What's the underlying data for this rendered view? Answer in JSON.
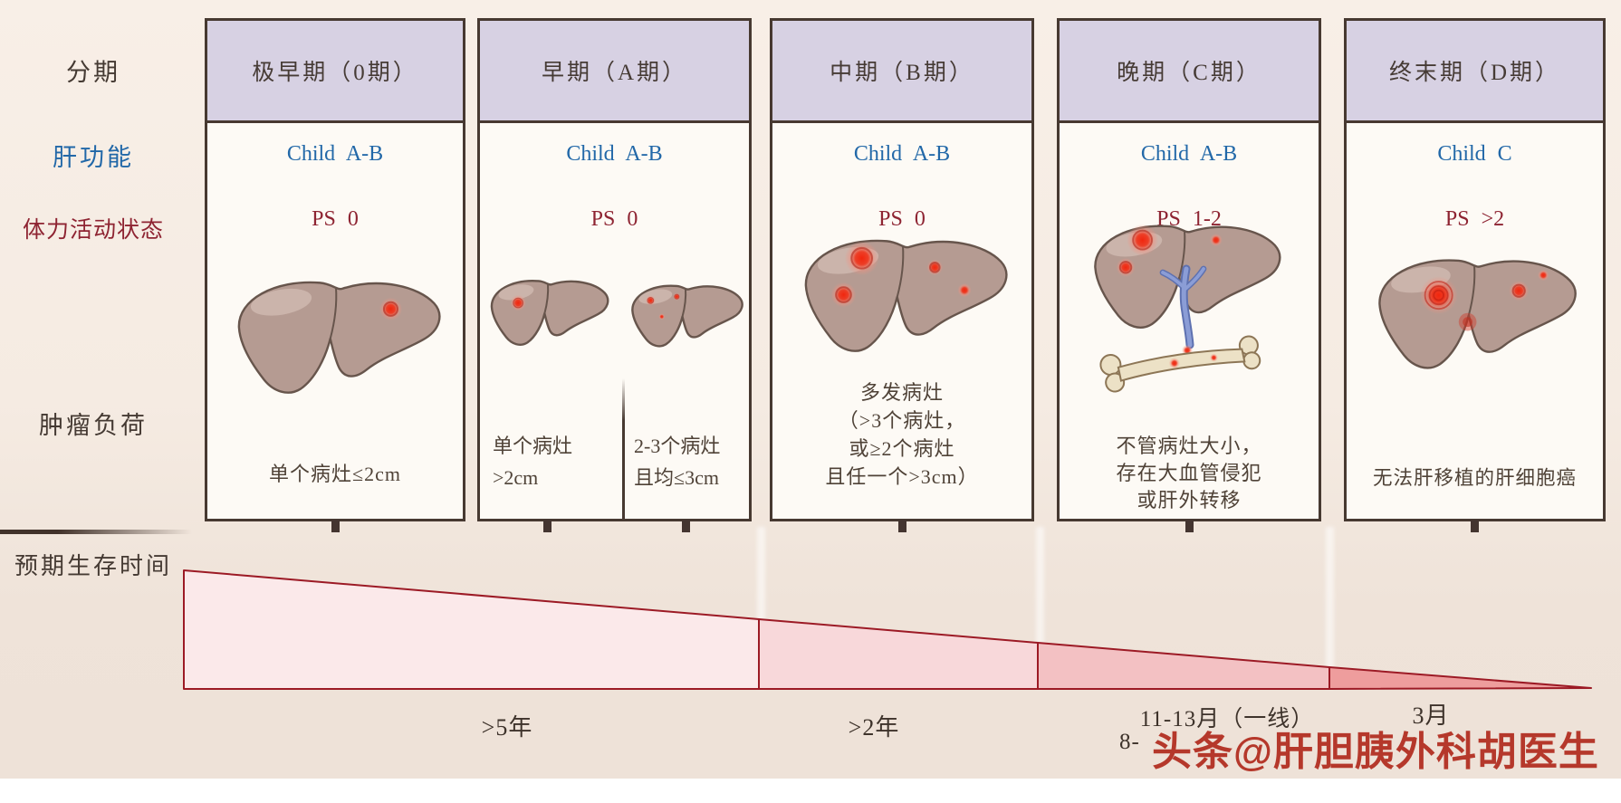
{
  "row_labels": {
    "staging": "分期",
    "liver_function": "肝功能",
    "performance_status": "体力活动状态",
    "tumor_burden": "肿瘤负荷",
    "expected_survival": "预期生存时间"
  },
  "stages": [
    {
      "header": "极早期（0期）",
      "child": "Child A-B",
      "ps": "PS 0",
      "illustration": "liver-with-single-small-tumor",
      "tumor_desc": [
        "单个病灶≤2cm"
      ]
    },
    {
      "header": "早期（A期）",
      "child": "Child A-B",
      "ps": "PS 0",
      "illustration": "two-livers-single-tumor-and-2-3-tumors",
      "sub_descs": [
        [
          "单个病灶",
          ">2cm"
        ],
        [
          "2-3个病灶",
          "且均≤3cm"
        ]
      ]
    },
    {
      "header": "中期（B期）",
      "child": "Child A-B",
      "ps": "PS 0",
      "illustration": "liver-with-multiple-tumors",
      "tumor_desc": [
        "多发病灶",
        "（>3个病灶，",
        "或≥2个病灶",
        "且任一个>3cm）"
      ]
    },
    {
      "header": "晚期（C期）",
      "child": "Child A-B",
      "ps": "PS 1-2",
      "illustration": "liver-with-vascular-invasion-and-bone-metastasis",
      "tumor_desc": [
        "不管病灶大小，",
        "存在大血管侵犯",
        "或肝外转移"
      ]
    },
    {
      "header": "终末期（D期）",
      "child": "Child C",
      "ps": "PS >2",
      "illustration": "liver-with-large-diffuse-tumors",
      "tumor_desc": [
        "无法肝移植的肝细胞癌"
      ]
    }
  ],
  "survival_labels": {
    "stage_0_a": ">5年",
    "stage_b": ">2年",
    "stage_c_line1": "11-13月（一线）",
    "stage_c_line2": "8-",
    "stage_d": "3月"
  },
  "watermark": {
    "text": "头条@肝胆胰外科胡医生"
  },
  "colors": {
    "header_bg": "#d7d1e3",
    "box_border": "#473931",
    "child_blue": "#2268a8",
    "ps_red": "#8e2432",
    "wedge_border": "#9c1a25",
    "wedge_fills": [
      "#fbe9ea",
      "#f8d8da",
      "#f3c1c3",
      "#ee9d9d"
    ],
    "watermark_red": "#b5382b"
  }
}
